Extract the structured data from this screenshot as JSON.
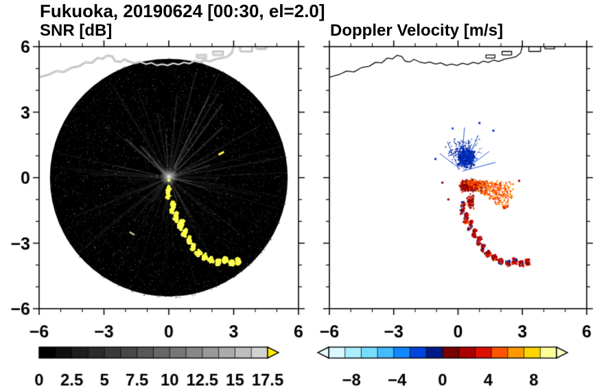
{
  "title": "Fukuoka, 20190624 [00:30, el=2.0]",
  "chart_data": [
    {
      "type": "radar_ppi",
      "panel": "SNR",
      "title": "SNR [dB]",
      "xlim": [
        -6,
        6
      ],
      "ylim": [
        -6,
        6
      ],
      "xticks": [
        -6,
        -3,
        0,
        3,
        6
      ],
      "yticks": [
        -6,
        -3,
        0,
        3,
        6
      ],
      "xtick_labels": [
        "−6",
        "−3",
        "0",
        "3",
        "6"
      ],
      "ytick_labels": [
        "−6",
        "−3",
        "0",
        "3",
        "6"
      ],
      "minor_tick_step": 1,
      "scan_disk": {
        "cx": 0,
        "cy": 0,
        "r": 5.5,
        "fill": "#000000"
      },
      "clutter": {
        "seed": 7,
        "speckle": 3800,
        "rays": 85
      },
      "echo_color": "#ffff4d",
      "coastline_style": {
        "core": "#ffffff",
        "halo": "#8a8a8a"
      },
      "colorbar": {
        "vmin": 0,
        "vmax": 17.5,
        "tick_values": [
          0,
          2.5,
          5,
          7.5,
          10,
          12.5,
          15,
          17.5
        ],
        "tick_labels": [
          "0",
          "2.5",
          "5",
          "7.5",
          "10",
          "12.5",
          "15",
          "17.5"
        ],
        "colors": [
          "#000000",
          "#101010",
          "#1e1e1e",
          "#2c2c2c",
          "#3a3a3a",
          "#484848",
          "#575757",
          "#676767",
          "#777777",
          "#888888",
          "#999999",
          "#ababab",
          "#bebebe",
          "#d2d2d2"
        ],
        "over_arrow": "#ffee00"
      }
    },
    {
      "type": "radar_ppi",
      "panel": "Doppler",
      "title": "Doppler Velocity [m/s]",
      "xlim": [
        -6,
        6
      ],
      "ylim": [
        -6,
        6
      ],
      "xticks": [
        -6,
        -3,
        0,
        3,
        6
      ],
      "yticks": [
        -6,
        -3,
        0,
        3,
        6
      ],
      "xtick_labels": [
        "−6",
        "−3",
        "0",
        "3",
        "6"
      ],
      "ytick_labels": [],
      "minor_tick_step": 1,
      "coastline_style": {
        "core": "#000000"
      },
      "toward_palette": [
        "#001a88",
        "#0033cc",
        "#1155ee",
        "#3388ff"
      ],
      "away_palette": [
        "#880000",
        "#bb0000",
        "#ee2200",
        "#ff6600",
        "#ff9900"
      ],
      "clusters": {
        "toward_main": {
          "cx": 0.35,
          "cy": 0.95,
          "sx": 0.5,
          "sy": 0.55,
          "n": 750
        },
        "toward_wide": {
          "cx": 0.2,
          "cy": 1.25,
          "sx": 0.95,
          "sy": 0.8,
          "n": 280
        },
        "away_main": {
          "cx": 0.5,
          "cy": -0.35,
          "sx": 0.55,
          "sy": 0.33,
          "n": 650
        },
        "away_tail": {
          "cx": 0.55,
          "cy": -1.05,
          "sx": 0.22,
          "sy": 0.4,
          "n": 170
        },
        "away_wedge": {
          "angle_min": 95,
          "angle_max": 123,
          "r_min": 0.5,
          "r_max": 2.6,
          "n": 430
        }
      },
      "toward_streaks": [
        [
          0.1,
          0.4,
          -0.85,
          1.1
        ],
        [
          0.05,
          0.35,
          -0.5,
          1.65
        ],
        [
          0.15,
          0.45,
          0.3,
          2.3
        ],
        [
          0.25,
          0.4,
          0.95,
          1.95
        ],
        [
          0.3,
          0.35,
          1.45,
          1.2
        ],
        [
          0.2,
          0.3,
          1.75,
          0.7
        ]
      ],
      "away_streaks": [
        [
          0.45,
          -0.2,
          2.4,
          -0.55
        ],
        [
          0.5,
          -0.3,
          2.25,
          -0.85
        ],
        [
          0.4,
          -0.15,
          1.85,
          -0.3
        ]
      ],
      "specks": [
        [
          -0.78,
          -0.18,
          "#880000"
        ],
        [
          -1.1,
          0.9,
          "#0033cc"
        ],
        [
          2.8,
          -0.1,
          "#bb0000"
        ],
        [
          -0.5,
          -0.95,
          "#880000"
        ],
        [
          0.95,
          2.55,
          "#0033cc"
        ],
        [
          -0.3,
          2.3,
          "#1155ee"
        ],
        [
          1.6,
          2.2,
          "#0033cc"
        ],
        [
          2.1,
          -1.35,
          "#cc2200"
        ]
      ],
      "colorbar": {
        "vmin": -10,
        "vmax": 10,
        "tick_values": [
          -8,
          -4,
          0,
          4,
          8
        ],
        "tick_labels": [
          "−8",
          "−4",
          "0",
          "4",
          "8"
        ],
        "colors": [
          "#d9f7ff",
          "#aaeeff",
          "#77ddff",
          "#44bbff",
          "#1188ff",
          "#0044dd",
          "#001a88",
          "#770000",
          "#aa0000",
          "#dd1100",
          "#ff5500",
          "#ff9900",
          "#ffd500",
          "#ffff99"
        ],
        "under_arrow": "#e8ffff",
        "over_arrow": "#ffffcc"
      }
    }
  ],
  "coastline": {
    "main": [
      [
        -6,
        4.6
      ],
      [
        -5.55,
        4.72
      ],
      [
        -5.2,
        4.88
      ],
      [
        -4.85,
        4.84
      ],
      [
        -4.5,
        5.04
      ],
      [
        -4.15,
        5.1
      ],
      [
        -3.85,
        5.28
      ],
      [
        -3.55,
        5.26
      ],
      [
        -3.3,
        5.48
      ],
      [
        -3.05,
        5.44
      ],
      [
        -2.85,
        5.6
      ],
      [
        -2.62,
        5.55
      ],
      [
        -2.48,
        5.34
      ],
      [
        -2.25,
        5.3
      ],
      [
        -2.05,
        5.42
      ],
      [
        -1.8,
        5.3
      ],
      [
        -1.55,
        5.24
      ],
      [
        -1.32,
        5.3
      ],
      [
        -1.05,
        5.2
      ],
      [
        -0.8,
        5.26
      ],
      [
        -0.55,
        5.14
      ],
      [
        -0.3,
        5.2
      ],
      [
        -0.05,
        5.14
      ],
      [
        0.2,
        5.24
      ],
      [
        0.45,
        5.18
      ],
      [
        0.7,
        5.28
      ],
      [
        0.95,
        5.22
      ],
      [
        1.18,
        5.34
      ],
      [
        1.42,
        5.28
      ],
      [
        1.65,
        5.38
      ],
      [
        1.9,
        5.32
      ],
      [
        2.15,
        5.42
      ],
      [
        2.45,
        5.48
      ],
      [
        2.7,
        5.54
      ],
      [
        2.92,
        5.72
      ],
      [
        3.02,
        6.1
      ]
    ],
    "islands": [
      [
        [
          1.3,
          5.48
        ],
        [
          1.72,
          5.48
        ],
        [
          1.72,
          5.62
        ],
        [
          1.3,
          5.62
        ],
        [
          1.3,
          5.48
        ]
      ],
      [
        [
          2.05,
          5.62
        ],
        [
          2.5,
          5.62
        ],
        [
          2.5,
          5.78
        ],
        [
          2.05,
          5.78
        ],
        [
          2.05,
          5.62
        ]
      ],
      [
        [
          3.3,
          5.78
        ],
        [
          3.85,
          5.78
        ],
        [
          3.85,
          6.05
        ],
        [
          3.3,
          6.05
        ],
        [
          3.3,
          5.78
        ]
      ],
      [
        [
          4.05,
          5.9
        ],
        [
          4.5,
          5.9
        ],
        [
          4.5,
          6.08
        ],
        [
          4.05,
          6.08
        ],
        [
          4.05,
          5.9
        ]
      ]
    ]
  },
  "echo_trail": [
    [
      0.0,
      -0.7,
      0.09,
      0.32,
      -5
    ],
    [
      0.17,
      -1.35,
      0.09,
      0.3,
      -10
    ],
    [
      0.34,
      -1.8,
      0.1,
      0.26,
      -12
    ],
    [
      0.55,
      -2.15,
      0.1,
      0.24,
      -15
    ],
    [
      0.73,
      -2.5,
      0.09,
      0.2,
      -12
    ],
    [
      0.95,
      -2.85,
      0.09,
      0.2,
      -10
    ],
    [
      1.12,
      -3.18,
      0.08,
      0.16,
      -12
    ],
    [
      1.35,
      -3.45,
      0.11,
      0.12,
      -50
    ],
    [
      1.65,
      -3.62,
      0.13,
      0.11,
      -70
    ],
    [
      1.95,
      -3.78,
      0.13,
      0.11,
      -78
    ],
    [
      2.28,
      -3.88,
      0.13,
      0.1,
      -82
    ],
    [
      2.6,
      -3.78,
      0.14,
      0.12,
      -95
    ],
    [
      2.9,
      -3.9,
      0.12,
      0.1,
      -85
    ],
    [
      3.2,
      -3.82,
      0.13,
      0.11,
      -85
    ]
  ]
}
